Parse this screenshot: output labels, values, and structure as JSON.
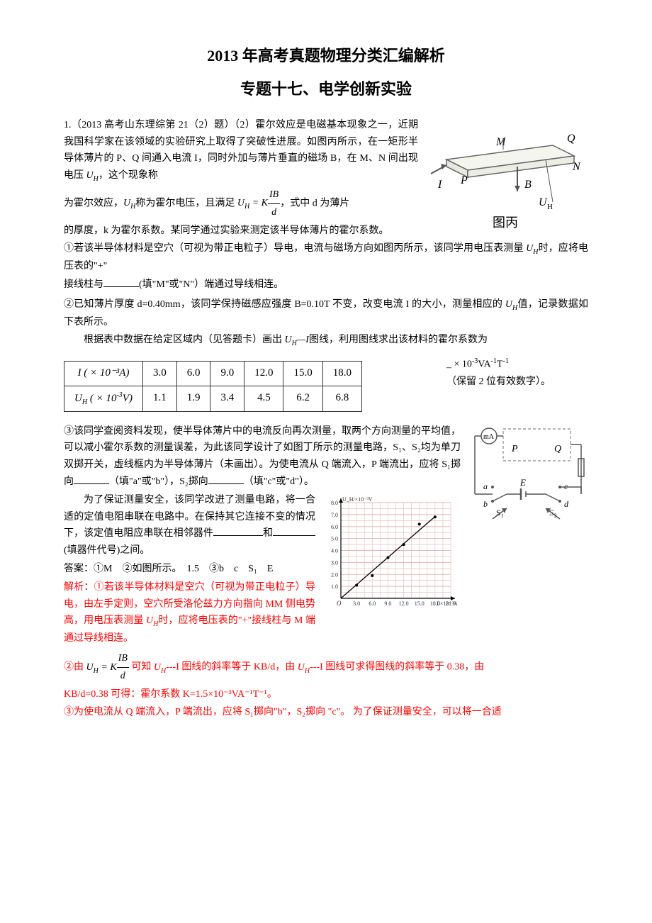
{
  "title": {
    "main": "2013 年高考真题物理分类汇编解析",
    "sub": "专题十七、电学创新实验"
  },
  "q1": {
    "header": "1.（2013 高考山东理综第 21（2）题）（2）霍尔效应是电磁基本现象之一，近期我国科学家在该领域的实验研究上取得了突破性进展。如图丙所示，在一矩形半导体薄片的 P、Q 间通入电流 I，同时外加与薄片垂直的磁场 B，在 M、N 间出现电压 ",
    "uh_intro": "，这个现象称",
    "p2a": "为霍尔效应，",
    "p2b": "称为霍尔电压，且满足",
    "p2c": "，式中 d 为薄片",
    "p3": "的厚度，k 为霍尔系数。某同学通过实验来测定该半导体薄片的霍尔系数。",
    "p4": "①若该半导体材料是空穴（可视为带正电粒子）导电，电流与磁场方向如图丙所示，该同学用电压表测量 ",
    "p4b": "时，应将电压表的\"+\"",
    "p5a": "接线柱与",
    "p5b": "(填\"M\"或\"N\"）端通过导线相连。",
    "p6a": "②已知薄片厚度 d=0.40mm，该同学保持磁感应强度 B=0.10T 不变，改变电流 I 的大小，测量相应的 ",
    "p6b": "值，记录数据如下表所示。",
    "p7a": "根据表中数据在给定区域内（见答题卡）画出 ",
    "p7b": "图线，利用图线求出该材料的霍尔系数为"
  },
  "data_table": {
    "row1_header": "I ( × 10⁻³A)",
    "row1_data": [
      "3.0",
      "6.0",
      "9.0",
      "12.0",
      "15.0",
      "18.0"
    ],
    "row2_header": "U_H ( × 10⁻³V)",
    "row2_data": [
      "1.1",
      "1.9",
      "3.4",
      "4.5",
      "6.2",
      "6.8"
    ],
    "border_color": "#333333",
    "cell_padding": "4px 14px"
  },
  "table_aside": {
    "line1a": "_ × 10",
    "line1sup": "-3",
    "line1b": "VA",
    "line1sup2": "-1",
    "line1c": "T",
    "line1sup3": "-1",
    "line2": "（保留 2 位有效数字）。"
  },
  "q3": {
    "p1": "③该同学查阅资料发现，使半导体薄片中的电流反向再次测量，取两个方向测量的平均值，可以减小霍尔系数的测量误差，为此该同学设计了如图丁所示的测量电路，S₁、S₂均为单刀双掷开关，虚线框内为半导体薄片（未画出）。为使电流从 Q 端流入，P 端流出，应将 S₁掷向",
    "p1b": "（填\"a\"或\"b\"），S₂掷向",
    "p1c": "（填\"c\"或\"d\"）。",
    "p2a": "为了保证测量安全，该同学改进了测量电路，将一合适的定值电阻串联在电路中。在保持其它连接不变的情况下，该定值电阻应串联在相邻器件",
    "p2b": "和",
    "p2c": "(填器件代号)之间。"
  },
  "answer": {
    "label": "答案：①M　②如图所示。　1.5　③b　c　S₁　E"
  },
  "analysis": {
    "p1a": "解析：①若该半导体材料是空穴（可视为带正电粒子）导电，由左手定则，空穴所受洛伦兹力方向指向 MM 侧电势高，用电压表测量 ",
    "p1b": "时，应将电压表的\"+\"接线柱与 M 端通过导线相连。",
    "p2a": "②由",
    "p2b": "可知 ",
    "p2c": "---I 图线的斜率等于 KB/d，由 ",
    "p2d": "---I 图线可求得图线的斜率等于 0.38，由",
    "p3": "KB/d=0.38 可得：霍尔系数 K=1.5×10⁻³VA⁻¹T⁻¹。",
    "p4": "③为使电流从 Q 端流入，P 端流出，应将 S₁掷向\"b\"，S₂掷向 \"c\"。 为了保证测量安全，可以将一合适"
  },
  "formula": {
    "uh_label": "U",
    "uh_sub": "H",
    "equals": " = K",
    "frac_num": "IB",
    "frac_den": "d",
    "uh_i_line": "U_H—I"
  },
  "hall_diagram": {
    "labels": {
      "P": "P",
      "Q": "Q",
      "M": "M",
      "N": "N",
      "B": "B",
      "I": "I",
      "UH": "U_H",
      "caption": "图丙"
    },
    "colors": {
      "line": "#666666",
      "text": "#333333",
      "bg": "#f8f8f6"
    }
  },
  "circuit": {
    "labels": {
      "P": "P",
      "Q": "Q",
      "a": "a",
      "b": "b",
      "c": "c",
      "d": "d",
      "E": "E",
      "S1": "S₁",
      "S2": "S₂",
      "mA": "mA"
    },
    "colors": {
      "line": "#555555",
      "dash": "#888888"
    }
  },
  "graph": {
    "ylabel": "U_H/×10⁻³V",
    "xlabel": "I/×10⁻³A",
    "yticks": [
      "1.0",
      "2.0",
      "3.0",
      "4.0",
      "5.0",
      "6.0",
      "7.0",
      "8.0"
    ],
    "xticks": [
      "3.0",
      "6.0",
      "9.0",
      "12.0",
      "15.0",
      "18.0",
      "21.0"
    ],
    "points": [
      [
        3,
        1.1
      ],
      [
        6,
        1.9
      ],
      [
        9,
        3.4
      ],
      [
        12,
        4.5
      ],
      [
        15,
        6.2
      ],
      [
        18,
        6.8
      ]
    ],
    "colors": {
      "grid": "#e8b8b8",
      "axis": "#000000",
      "line": "#000000",
      "text": "#333333"
    },
    "xmax": 21,
    "ymax": 8
  },
  "colors": {
    "text": "#000000",
    "red": "#ff0000",
    "bg": "#ffffff"
  }
}
